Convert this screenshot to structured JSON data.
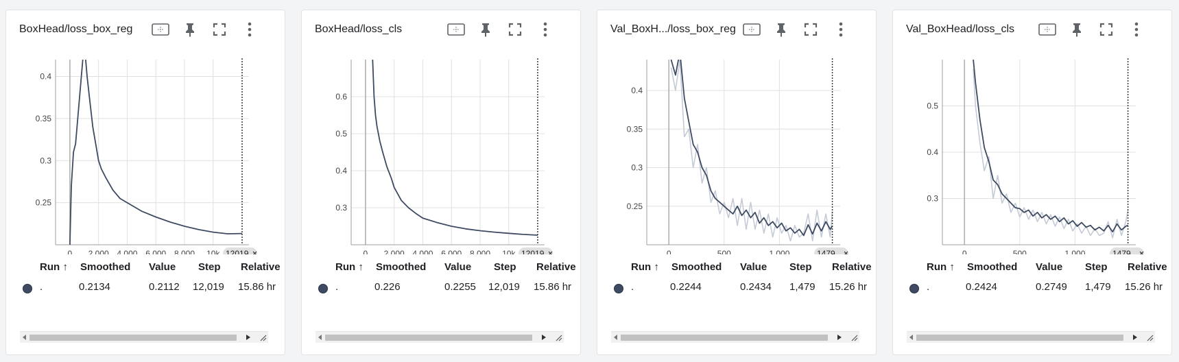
{
  "colors": {
    "smoothed": "#3e4a61",
    "raw": "#c4cad6",
    "grid": "#e0e0e0",
    "axis": "#9e9e9e"
  },
  "table_headers": {
    "run": "Run ↑",
    "smoothed": "Smoothed",
    "value": "Value",
    "step": "Step",
    "relative": "Relative"
  },
  "icons": [
    "fit-domain-icon",
    "pin-icon",
    "fullscreen-icon",
    "more-vert-icon"
  ],
  "cards": [
    {
      "title": "BoxHead/loss_box_reg",
      "row": {
        "run": ".",
        "smoothed": "0.2134",
        "value": "0.2112",
        "step": "12,019",
        "relative": "15.86 hr"
      },
      "step_badge": "12019"
    },
    {
      "title": "BoxHead/loss_cls",
      "row": {
        "run": ".",
        "smoothed": "0.226",
        "value": "0.2255",
        "step": "12,019",
        "relative": "15.86 hr"
      },
      "step_badge": "12019"
    },
    {
      "title": "Val_BoxH.../loss_box_reg",
      "row": {
        "run": ".",
        "smoothed": "0.2244",
        "value": "0.2434",
        "step": "1,479",
        "relative": "15.26 hr"
      },
      "step_badge": "1479"
    },
    {
      "title": "Val_BoxHead/loss_cls",
      "row": {
        "run": ".",
        "smoothed": "0.2424",
        "value": "0.2749",
        "step": "1,479",
        "relative": "15.26 hr"
      },
      "step_badge": "1479"
    }
  ],
  "chart_data": [
    {
      "type": "line",
      "title": "BoxHead/loss_box_reg",
      "xlim": [
        -1000,
        12500
      ],
      "ylim": [
        0.2,
        0.42
      ],
      "xticks": [
        0,
        2000,
        4000,
        6000,
        8000,
        10000
      ],
      "xtick_labels": [
        "0",
        "2,000",
        "4,000",
        "6,000",
        "8,000",
        "10k"
      ],
      "yticks": [
        0.25,
        0.3,
        0.35,
        0.4
      ],
      "ytick_labels": [
        "0.25",
        "0.3",
        "0.35",
        "0.4"
      ],
      "cursor_step": 12019,
      "series": [
        {
          "x": [
            0,
            100,
            250,
            400,
            500,
            600,
            700,
            800,
            900,
            1000,
            1100,
            1200,
            1400,
            1600,
            1800,
            2000,
            2200,
            2500,
            3000,
            3500,
            4000,
            5000,
            6000,
            7000,
            8000,
            9000,
            10000,
            11000,
            12019
          ],
          "y": [
            0.2,
            0.27,
            0.31,
            0.32,
            0.34,
            0.36,
            0.38,
            0.4,
            0.42,
            0.43,
            0.42,
            0.4,
            0.37,
            0.34,
            0.32,
            0.3,
            0.29,
            0.28,
            0.265,
            0.255,
            0.25,
            0.24,
            0.233,
            0.227,
            0.222,
            0.218,
            0.215,
            0.213,
            0.2134
          ]
        }
      ]
    },
    {
      "type": "line",
      "title": "BoxHead/loss_cls",
      "xlim": [
        -1000,
        12500
      ],
      "ylim": [
        0.2,
        0.7
      ],
      "xticks": [
        0,
        2000,
        4000,
        6000,
        8000,
        10000
      ],
      "xtick_labels": [
        "0",
        "2,000",
        "4,000",
        "6,000",
        "8,000",
        "10k"
      ],
      "yticks": [
        0.3,
        0.4,
        0.5,
        0.6
      ],
      "ytick_labels": [
        "0.3",
        "0.4",
        "0.5",
        "0.6"
      ],
      "cursor_step": 12019,
      "series": [
        {
          "x": [
            500,
            600,
            700,
            800,
            1000,
            1200,
            1500,
            1800,
            2000,
            2500,
            3000,
            3500,
            4000,
            5000,
            6000,
            7000,
            8000,
            9000,
            10000,
            11000,
            12019
          ],
          "y": [
            0.7,
            0.6,
            0.55,
            0.52,
            0.48,
            0.45,
            0.41,
            0.38,
            0.355,
            0.32,
            0.3,
            0.285,
            0.272,
            0.26,
            0.25,
            0.243,
            0.238,
            0.234,
            0.231,
            0.228,
            0.226
          ]
        }
      ]
    },
    {
      "type": "line",
      "title": "Val_BoxH.../loss_box_reg",
      "xlim": [
        -200,
        1550
      ],
      "ylim": [
        0.2,
        0.44
      ],
      "xticks": [
        0,
        500,
        1000
      ],
      "xtick_labels": [
        "0",
        "500",
        "1,000"
      ],
      "yticks": [
        0.25,
        0.3,
        0.35,
        0.4
      ],
      "ytick_labels": [
        "0.25",
        "0.3",
        "0.35",
        "0.4"
      ],
      "cursor_step": 1479,
      "series": [
        {
          "name": "smoothed",
          "x": [
            20,
            60,
            100,
            140,
            180,
            220,
            260,
            300,
            340,
            380,
            420,
            460,
            500,
            540,
            580,
            620,
            660,
            700,
            740,
            780,
            820,
            860,
            900,
            940,
            980,
            1020,
            1060,
            1100,
            1140,
            1180,
            1220,
            1260,
            1300,
            1340,
            1380,
            1420,
            1460,
            1479
          ],
          "y": [
            0.44,
            0.42,
            0.45,
            0.39,
            0.36,
            0.33,
            0.32,
            0.3,
            0.29,
            0.27,
            0.26,
            0.255,
            0.25,
            0.245,
            0.24,
            0.25,
            0.238,
            0.245,
            0.235,
            0.242,
            0.228,
            0.235,
            0.225,
            0.23,
            0.222,
            0.228,
            0.218,
            0.222,
            0.215,
            0.22,
            0.212,
            0.226,
            0.214,
            0.228,
            0.218,
            0.23,
            0.22,
            0.2244
          ]
        },
        {
          "name": "raw",
          "x": [
            20,
            60,
            100,
            140,
            180,
            220,
            260,
            300,
            340,
            380,
            420,
            460,
            500,
            540,
            580,
            620,
            660,
            700,
            740,
            780,
            820,
            860,
            900,
            940,
            980,
            1020,
            1060,
            1100,
            1140,
            1180,
            1220,
            1260,
            1300,
            1340,
            1380,
            1420,
            1460,
            1479
          ],
          "y": [
            0.43,
            0.4,
            0.44,
            0.34,
            0.35,
            0.3,
            0.33,
            0.28,
            0.3,
            0.255,
            0.27,
            0.24,
            0.255,
            0.235,
            0.26,
            0.225,
            0.26,
            0.22,
            0.255,
            0.22,
            0.245,
            0.215,
            0.24,
            0.21,
            0.235,
            0.215,
            0.225,
            0.205,
            0.225,
            0.21,
            0.215,
            0.24,
            0.205,
            0.245,
            0.21,
            0.24,
            0.21,
            0.2434
          ]
        }
      ]
    },
    {
      "type": "line",
      "title": "Val_BoxHead/loss_cls",
      "xlim": [
        -200,
        1550
      ],
      "ylim": [
        0.2,
        0.6
      ],
      "xticks": [
        0,
        500,
        1000
      ],
      "xtick_labels": [
        "0",
        "500",
        "1,000"
      ],
      "yticks": [
        0.3,
        0.4,
        0.5
      ],
      "ytick_labels": [
        "0.3",
        "0.4",
        "0.5"
      ],
      "cursor_step": 1479,
      "series": [
        {
          "name": "smoothed",
          "x": [
            80,
            100,
            140,
            180,
            220,
            260,
            300,
            340,
            380,
            420,
            460,
            500,
            540,
            580,
            620,
            660,
            700,
            740,
            780,
            820,
            860,
            900,
            940,
            980,
            1020,
            1060,
            1100,
            1140,
            1180,
            1220,
            1260,
            1300,
            1340,
            1380,
            1420,
            1460,
            1479
          ],
          "y": [
            0.6,
            0.55,
            0.47,
            0.41,
            0.38,
            0.34,
            0.33,
            0.31,
            0.3,
            0.29,
            0.28,
            0.278,
            0.27,
            0.275,
            0.262,
            0.27,
            0.258,
            0.265,
            0.255,
            0.262,
            0.25,
            0.258,
            0.245,
            0.252,
            0.24,
            0.248,
            0.238,
            0.242,
            0.232,
            0.238,
            0.23,
            0.242,
            0.228,
            0.245,
            0.232,
            0.24,
            0.2424
          ]
        },
        {
          "name": "raw",
          "x": [
            80,
            100,
            140,
            180,
            220,
            260,
            300,
            340,
            380,
            420,
            460,
            500,
            540,
            580,
            620,
            660,
            700,
            740,
            780,
            820,
            860,
            900,
            940,
            980,
            1020,
            1060,
            1100,
            1140,
            1180,
            1220,
            1260,
            1300,
            1340,
            1380,
            1420,
            1460,
            1479
          ],
          "y": [
            0.58,
            0.5,
            0.42,
            0.36,
            0.39,
            0.3,
            0.35,
            0.29,
            0.31,
            0.27,
            0.29,
            0.26,
            0.28,
            0.255,
            0.275,
            0.25,
            0.27,
            0.245,
            0.265,
            0.24,
            0.26,
            0.235,
            0.255,
            0.23,
            0.245,
            0.225,
            0.24,
            0.22,
            0.235,
            0.22,
            0.225,
            0.25,
            0.215,
            0.255,
            0.22,
            0.25,
            0.2749
          ]
        }
      ]
    }
  ]
}
